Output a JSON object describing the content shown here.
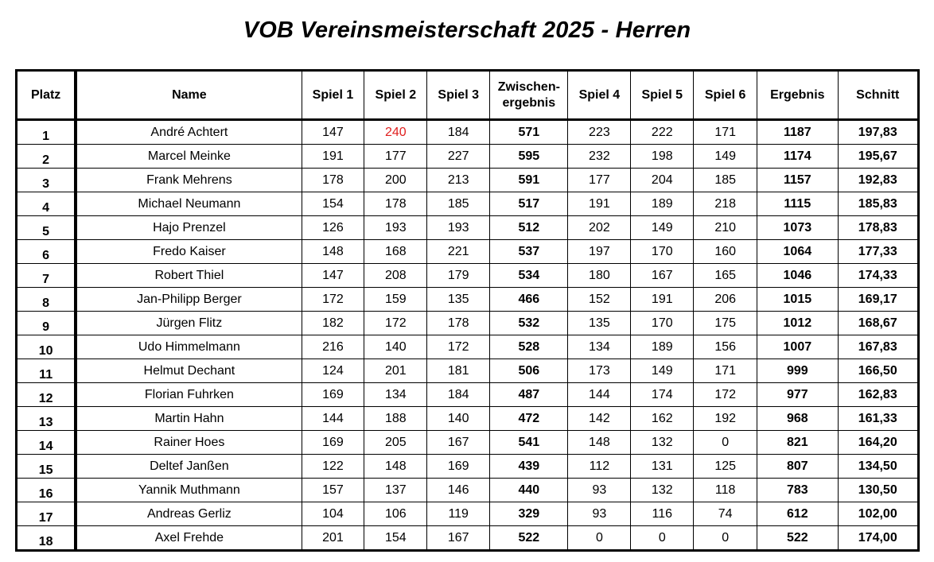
{
  "title": "VOB Vereinsmeisterschaft 2025 - Herren",
  "headers": {
    "platz": "Platz",
    "name": "Name",
    "spiel1": "Spiel 1",
    "spiel2": "Spiel 2",
    "spiel3": "Spiel 3",
    "zwischen_line1": "Zwischen-",
    "zwischen_line2": "ergebnis",
    "spiel4": "Spiel 4",
    "spiel5": "Spiel 5",
    "spiel6": "Spiel 6",
    "ergebnis": "Ergebnis",
    "schnitt": "Schnitt"
  },
  "highlight_color": "#e0201f",
  "rows": [
    {
      "platz": "1",
      "name": "André Achtert",
      "s1": "147",
      "s2": "240",
      "s3": "184",
      "zw": "571",
      "s4": "223",
      "s5": "222",
      "s6": "171",
      "erg": "1187",
      "schnitt": "197,83",
      "highlight": "s2"
    },
    {
      "platz": "2",
      "name": "Marcel Meinke",
      "s1": "191",
      "s2": "177",
      "s3": "227",
      "zw": "595",
      "s4": "232",
      "s5": "198",
      "s6": "149",
      "erg": "1174",
      "schnitt": "195,67"
    },
    {
      "platz": "3",
      "name": "Frank Mehrens",
      "s1": "178",
      "s2": "200",
      "s3": "213",
      "zw": "591",
      "s4": "177",
      "s5": "204",
      "s6": "185",
      "erg": "1157",
      "schnitt": "192,83"
    },
    {
      "platz": "4",
      "name": "Michael Neumann",
      "s1": "154",
      "s2": "178",
      "s3": "185",
      "zw": "517",
      "s4": "191",
      "s5": "189",
      "s6": "218",
      "erg": "1115",
      "schnitt": "185,83"
    },
    {
      "platz": "5",
      "name": "Hajo Prenzel",
      "s1": "126",
      "s2": "193",
      "s3": "193",
      "zw": "512",
      "s4": "202",
      "s5": "149",
      "s6": "210",
      "erg": "1073",
      "schnitt": "178,83"
    },
    {
      "platz": "6",
      "name": "Fredo Kaiser",
      "s1": "148",
      "s2": "168",
      "s3": "221",
      "zw": "537",
      "s4": "197",
      "s5": "170",
      "s6": "160",
      "erg": "1064",
      "schnitt": "177,33"
    },
    {
      "platz": "7",
      "name": "Robert Thiel",
      "s1": "147",
      "s2": "208",
      "s3": "179",
      "zw": "534",
      "s4": "180",
      "s5": "167",
      "s6": "165",
      "erg": "1046",
      "schnitt": "174,33"
    },
    {
      "platz": "8",
      "name": "Jan-Philipp Berger",
      "s1": "172",
      "s2": "159",
      "s3": "135",
      "zw": "466",
      "s4": "152",
      "s5": "191",
      "s6": "206",
      "erg": "1015",
      "schnitt": "169,17"
    },
    {
      "platz": "9",
      "name": "Jürgen Flitz",
      "s1": "182",
      "s2": "172",
      "s3": "178",
      "zw": "532",
      "s4": "135",
      "s5": "170",
      "s6": "175",
      "erg": "1012",
      "schnitt": "168,67"
    },
    {
      "platz": "10",
      "name": "Udo Himmelmann",
      "s1": "216",
      "s2": "140",
      "s3": "172",
      "zw": "528",
      "s4": "134",
      "s5": "189",
      "s6": "156",
      "erg": "1007",
      "schnitt": "167,83"
    },
    {
      "platz": "11",
      "name": "Helmut Dechant",
      "s1": "124",
      "s2": "201",
      "s3": "181",
      "zw": "506",
      "s4": "173",
      "s5": "149",
      "s6": "171",
      "erg": "999",
      "schnitt": "166,50"
    },
    {
      "platz": "12",
      "name": "Florian Fuhrken",
      "s1": "169",
      "s2": "134",
      "s3": "184",
      "zw": "487",
      "s4": "144",
      "s5": "174",
      "s6": "172",
      "erg": "977",
      "schnitt": "162,83"
    },
    {
      "platz": "13",
      "name": "Martin Hahn",
      "s1": "144",
      "s2": "188",
      "s3": "140",
      "zw": "472",
      "s4": "142",
      "s5": "162",
      "s6": "192",
      "erg": "968",
      "schnitt": "161,33"
    },
    {
      "platz": "14",
      "name": "Rainer Hoes",
      "s1": "169",
      "s2": "205",
      "s3": "167",
      "zw": "541",
      "s4": "148",
      "s5": "132",
      "s6": "0",
      "erg": "821",
      "schnitt": "164,20"
    },
    {
      "platz": "15",
      "name": "Deltef Janßen",
      "s1": "122",
      "s2": "148",
      "s3": "169",
      "zw": "439",
      "s4": "112",
      "s5": "131",
      "s6": "125",
      "erg": "807",
      "schnitt": "134,50"
    },
    {
      "platz": "16",
      "name": "Yannik Muthmann",
      "s1": "157",
      "s2": "137",
      "s3": "146",
      "zw": "440",
      "s4": "93",
      "s5": "132",
      "s6": "118",
      "erg": "783",
      "schnitt": "130,50"
    },
    {
      "platz": "17",
      "name": "Andreas Gerliz",
      "s1": "104",
      "s2": "106",
      "s3": "119",
      "zw": "329",
      "s4": "93",
      "s5": "116",
      "s6": "74",
      "erg": "612",
      "schnitt": "102,00"
    },
    {
      "platz": "18",
      "name": "Axel Frehde",
      "s1": "201",
      "s2": "154",
      "s3": "167",
      "zw": "522",
      "s4": "0",
      "s5": "0",
      "s6": "0",
      "erg": "522",
      "schnitt": "174,00"
    }
  ]
}
